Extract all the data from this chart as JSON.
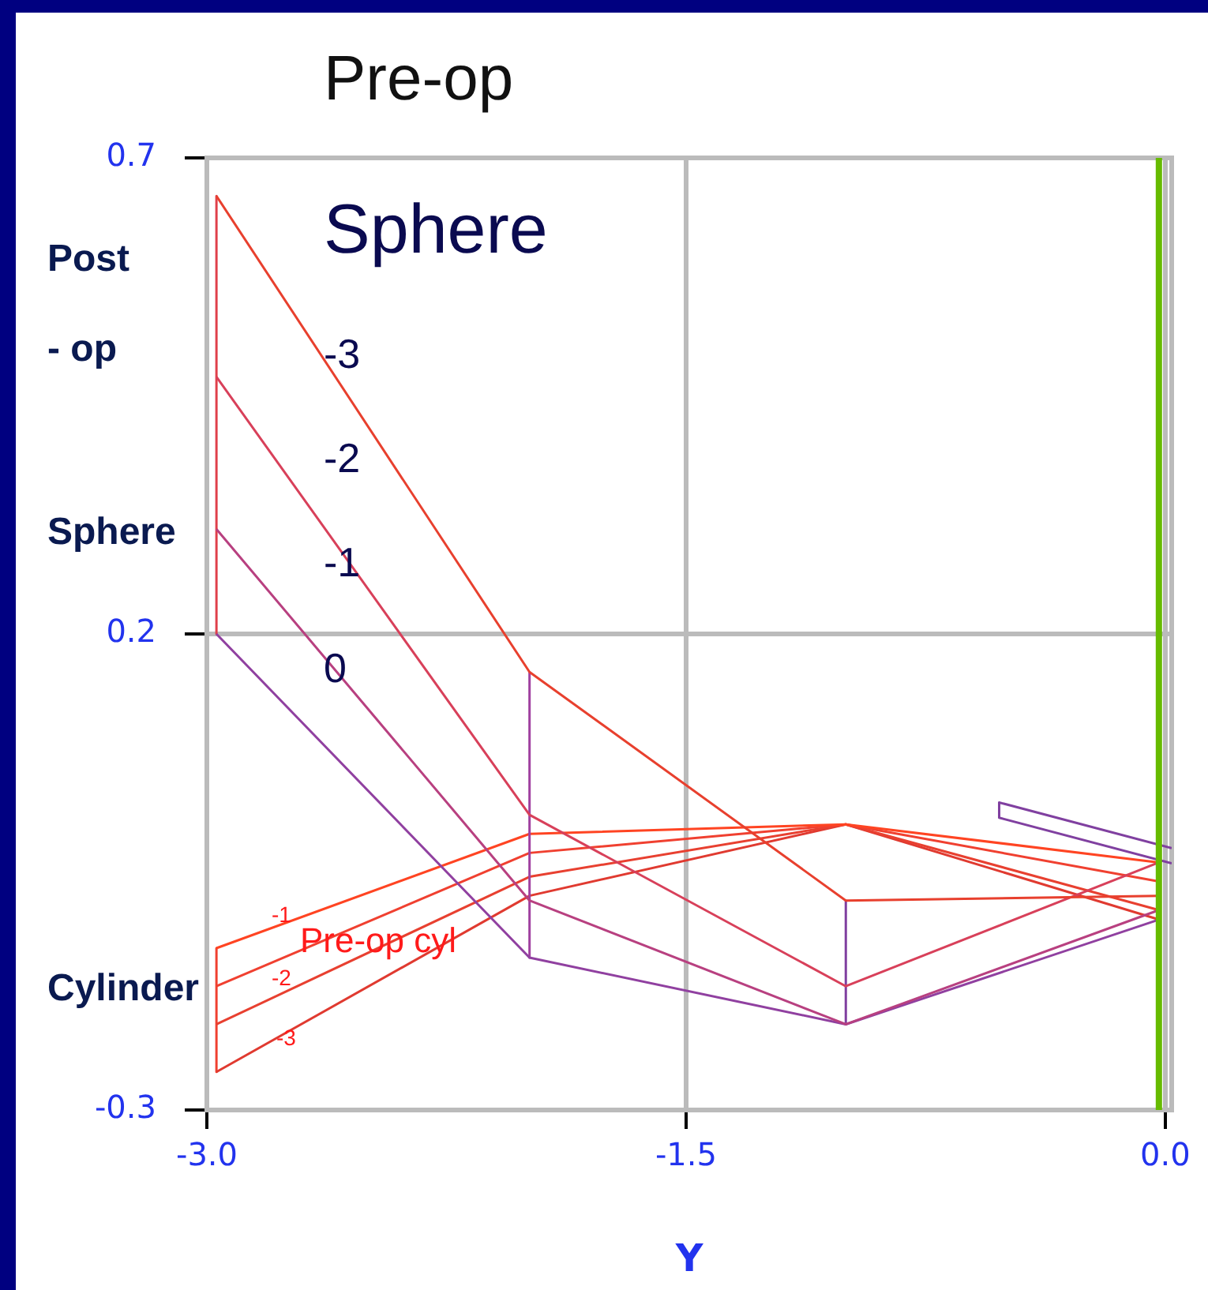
{
  "chart_data": {
    "type": "line",
    "xlabel": "Y",
    "annotations": [
      "Pre-op",
      "Sphere",
      "-3",
      "-2",
      "-1",
      "0",
      "Post",
      "- op",
      "Sphere",
      "Cylinder",
      "Pre-op cyl",
      "-1",
      "-2",
      "-3"
    ],
    "xlim": [
      -3.0,
      0.02
    ],
    "xticks": [
      {
        "value": -3,
        "label": "-3.0"
      },
      {
        "value": -1.5,
        "label": "-1.5"
      },
      {
        "value": 0,
        "label": "0.0"
      }
    ],
    "ylim": [
      -0.3,
      0.7
    ],
    "yticks": [
      -0.3,
      0.2,
      0.7
    ],
    "grid": true,
    "marker": "none",
    "line_style": "solid",
    "ref_lines": [
      {
        "axis": "x",
        "value": -0.02,
        "color": "#66bb00"
      }
    ],
    "series": [
      {
        "color": "#e8402e",
        "x": [
          -2.97,
          -1.99,
          -1.0,
          -0.02
        ],
        "values": [
          0.66,
          0.16,
          -0.08,
          -0.075
        ]
      },
      {
        "color": "#d8405a",
        "x": [
          -2.97,
          -1.99,
          -1.0,
          -0.02
        ],
        "values": [
          0.47,
          0.01,
          -0.17,
          -0.04
        ]
      },
      {
        "color": "#b84080",
        "x": [
          -2.97,
          -1.99,
          -1.0,
          -0.02
        ],
        "values": [
          0.31,
          -0.08,
          -0.21,
          -0.09
        ]
      },
      {
        "color": "#9040a0",
        "x": [
          -2.97,
          -1.99,
          -1.0,
          -0.02
        ],
        "values": [
          0.2,
          -0.14,
          -0.21,
          -0.1
        ]
      },
      {
        "color": "#e0404a",
        "x": [
          -2.97,
          -2.97
        ],
        "values": [
          0.66,
          0.2
        ]
      },
      {
        "color": "#a040a0",
        "x": [
          -1.99,
          -1.99
        ],
        "values": [
          0.16,
          -0.14
        ]
      },
      {
        "color": "#8040a0",
        "x": [
          -1.0,
          -1.0
        ],
        "values": [
          -0.08,
          -0.21
        ]
      },
      {
        "color": "#ff4422",
        "x": [
          -2.97,
          -1.99,
          -1.0,
          -0.02
        ],
        "values": [
          -0.13,
          -0.01,
          0.0,
          -0.04
        ]
      },
      {
        "color": "#f04030",
        "x": [
          -2.97,
          -1.99,
          -1.0,
          -0.02
        ],
        "values": [
          -0.17,
          -0.03,
          0.0,
          -0.06
        ]
      },
      {
        "color": "#e84030",
        "x": [
          -2.97,
          -1.99,
          -1.0,
          -0.02
        ],
        "values": [
          -0.21,
          -0.055,
          0.0,
          -0.09
        ]
      },
      {
        "color": "#e03a30",
        "x": [
          -2.97,
          -1.99,
          -1.0,
          -0.02
        ],
        "values": [
          -0.26,
          -0.075,
          0.0,
          -0.1
        ]
      },
      {
        "color": "#f04030",
        "x": [
          -2.97,
          -2.97
        ],
        "values": [
          -0.13,
          -0.26
        ]
      },
      {
        "color": "#8040a0",
        "x": [
          0.02,
          -0.52,
          -0.52,
          0.02
        ],
        "values": [
          -0.025,
          0.023,
          0.007,
          -0.041
        ]
      }
    ]
  }
}
